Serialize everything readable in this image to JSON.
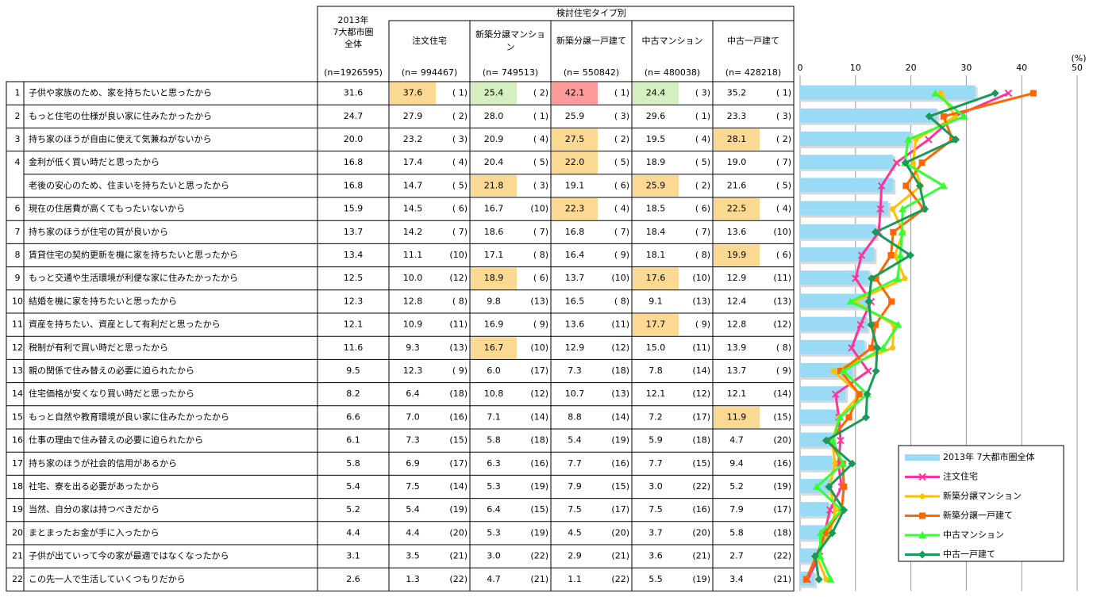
{
  "chart_data": {
    "type": "bar-line",
    "group_header": "検討住宅タイプ別",
    "x_unit": "(%)",
    "xlim": [
      0,
      50
    ],
    "xticks": [
      0,
      10,
      20,
      30,
      40,
      50
    ],
    "grid": true,
    "legend": "lower right",
    "row_numbers": [
      1,
      2,
      3,
      4,
      null,
      6,
      7,
      8,
      9,
      10,
      11,
      12,
      13,
      14,
      15,
      16,
      17,
      18,
      19,
      20,
      21,
      22
    ],
    "categories": [
      "子供や家族のため、家を持ちたいと思ったから",
      "もっと住宅の仕様が良い家に住みたかったから",
      "持ち家のほうが自由に使えて気兼ねがないから",
      "金利が低く買い時だと思ったから",
      "老後の安心のため、住まいを持ちたいと思ったから",
      "現在の住居費が高くてもったいないから",
      "持ち家のほうが住宅の質が良いから",
      "賃貸住宅の契約更新を機に家を持ちたいと思ったから",
      "もっと交通や生活環境が利便な家に住みたかったから",
      "結婚を機に家を持ちたいと思ったから",
      "資産を持ちたい、資産として有利だと思ったから",
      "税制が有利で買い時だと思ったから",
      "親の関係で住み替えの必要に迫られたから",
      "住宅価格が安くなり買い時だと思ったから",
      "もっと自然や教育環境が良い家に住みたかったから",
      "仕事の理由で住み替えの必要に迫られたから",
      "持ち家のほうが社会的信用があるから",
      "社宅、寮を出る必要があったから",
      "当然、自分の家は持つべきだから",
      "まとまったお金が手に入ったから",
      "子供が出ていって今の家が最適ではなくなったから",
      "この先一人で生活していくつもりだから"
    ],
    "series": [
      {
        "name": "2013年 7大都市圏全体",
        "color": "#99dbf5",
        "marker": "bar",
        "header_lines": [
          "2013年",
          "7大都市圏",
          "全体"
        ],
        "n": {
          "value": 1926595,
          "label": "(n=1926595)"
        },
        "values": [
          31.6,
          24.7,
          20.0,
          16.8,
          16.8,
          15.9,
          13.7,
          13.4,
          12.5,
          12.3,
          12.1,
          11.6,
          9.5,
          8.2,
          6.6,
          6.1,
          5.8,
          5.4,
          5.2,
          4.4,
          3.1,
          2.6
        ],
        "value_labels": [
          "31.6",
          "24.7",
          "20.0",
          "16.8",
          "16.8",
          "15.9",
          "13.7",
          "13.4",
          "12.5",
          "12.3",
          "12.1",
          "11.6",
          "9.5",
          "8.2",
          "6.6",
          "6.1",
          "5.8",
          "5.4",
          "5.2",
          "4.4",
          "3.1",
          "2.6"
        ]
      },
      {
        "name": "注文住宅",
        "color": "#ff3399",
        "marker": "x",
        "n": {
          "value": 994467,
          "label": "(n= 994467)"
        },
        "values": [
          37.6,
          27.9,
          23.2,
          17.4,
          14.7,
          14.5,
          14.2,
          11.1,
          10.0,
          12.8,
          10.9,
          9.3,
          12.3,
          6.4,
          7.0,
          7.3,
          6.9,
          7.5,
          5.4,
          4.4,
          3.5,
          1.3
        ],
        "value_labels": [
          "37.6",
          "27.9",
          "23.2",
          "17.4",
          "14.7",
          "14.5",
          "14.2",
          "11.1",
          "10.0",
          "12.8",
          "10.9",
          "9.3",
          "12.3",
          "6.4",
          "7.0",
          "7.3",
          "6.9",
          "7.5",
          "5.4",
          "4.4",
          "3.5",
          "1.3"
        ],
        "ranks": [
          "( 1)",
          "( 2)",
          "( 3)",
          "( 4)",
          "( 5)",
          "( 6)",
          "( 7)",
          "(10)",
          "(12)",
          "( 8)",
          "(11)",
          "(13)",
          "( 9)",
          "(18)",
          "(16)",
          "(15)",
          "(17)",
          "(14)",
          "(19)",
          "(20)",
          "(21)",
          "(22)"
        ],
        "cell_colors": [
          "#fcd992",
          null,
          null,
          null,
          null,
          null,
          null,
          null,
          null,
          null,
          null,
          null,
          null,
          null,
          null,
          null,
          null,
          null,
          null,
          null,
          null,
          null
        ]
      },
      {
        "name": "新築分譲マンション",
        "color": "#ffc000",
        "marker": "circle",
        "n": {
          "value": 749513,
          "label": "(n= 749513)"
        },
        "values": [
          25.4,
          28.0,
          20.9,
          20.4,
          21.8,
          16.7,
          18.6,
          17.1,
          18.9,
          9.8,
          16.9,
          16.7,
          6.0,
          10.8,
          7.1,
          5.8,
          6.3,
          5.3,
          6.4,
          5.3,
          3.0,
          4.7
        ],
        "value_labels": [
          "25.4",
          "28.0",
          "20.9",
          "20.4",
          "21.8",
          "16.7",
          "18.6",
          "17.1",
          "18.9",
          "9.8",
          "16.9",
          "16.7",
          "6.0",
          "10.8",
          "7.1",
          "5.8",
          "6.3",
          "5.3",
          "6.4",
          "5.3",
          "3.0",
          "4.7"
        ],
        "ranks": [
          "( 2)",
          "( 1)",
          "( 4)",
          "( 5)",
          "( 3)",
          "(10)",
          "( 7)",
          "( 8)",
          "( 6)",
          "(13)",
          "( 9)",
          "(10)",
          "(17)",
          "(12)",
          "(14)",
          "(18)",
          "(16)",
          "(19)",
          "(15)",
          "(19)",
          "(22)",
          "(21)"
        ],
        "cell_colors": [
          "#d6efc0",
          null,
          null,
          null,
          "#fcd992",
          null,
          null,
          null,
          "#fcd992",
          null,
          null,
          "#fcd992",
          null,
          null,
          null,
          null,
          null,
          null,
          null,
          null,
          null,
          null
        ]
      },
      {
        "name": "新築分譲一戸建て",
        "color": "#ff6600",
        "marker": "square",
        "n": {
          "value": 550842,
          "label": "(n= 550842)"
        },
        "values": [
          42.1,
          25.9,
          27.5,
          22.0,
          19.1,
          22.3,
          16.8,
          16.4,
          13.7,
          16.5,
          13.6,
          12.9,
          7.3,
          10.7,
          8.8,
          5.4,
          7.7,
          7.9,
          7.5,
          4.5,
          2.9,
          1.1
        ],
        "value_labels": [
          "42.1",
          "25.9",
          "27.5",
          "22.0",
          "19.1",
          "22.3",
          "16.8",
          "16.4",
          "13.7",
          "16.5",
          "13.6",
          "12.9",
          "7.3",
          "10.7",
          "8.8",
          "5.4",
          "7.7",
          "7.9",
          "7.5",
          "4.5",
          "2.9",
          "1.1"
        ],
        "ranks": [
          "( 1)",
          "( 3)",
          "( 2)",
          "( 5)",
          "( 6)",
          "( 4)",
          "( 7)",
          "( 9)",
          "(10)",
          "( 8)",
          "(11)",
          "(12)",
          "(18)",
          "(13)",
          "(14)",
          "(19)",
          "(16)",
          "(15)",
          "(17)",
          "(20)",
          "(21)",
          "(22)"
        ],
        "cell_colors": [
          "#ff9b9b",
          null,
          "#fcd992",
          "#fcd992",
          null,
          "#fcd992",
          null,
          null,
          null,
          null,
          null,
          null,
          null,
          null,
          null,
          null,
          null,
          null,
          null,
          null,
          null,
          null
        ]
      },
      {
        "name": "中古マンション",
        "color": "#33ff33",
        "marker": "triangle",
        "n": {
          "value": 480038,
          "label": "(n= 480038)"
        },
        "values": [
          24.4,
          29.6,
          19.5,
          18.9,
          25.9,
          18.5,
          18.4,
          18.1,
          17.6,
          9.1,
          17.7,
          15.0,
          7.8,
          12.1,
          7.2,
          5.9,
          7.7,
          3.0,
          7.5,
          3.7,
          3.6,
          5.5
        ],
        "value_labels": [
          "24.4",
          "29.6",
          "19.5",
          "18.9",
          "25.9",
          "18.5",
          "18.4",
          "18.1",
          "17.6",
          "9.1",
          "17.7",
          "15.0",
          "7.8",
          "12.1",
          "7.2",
          "5.9",
          "7.7",
          "3.0",
          "7.5",
          "3.7",
          "3.6",
          "5.5"
        ],
        "ranks": [
          "( 3)",
          "( 1)",
          "( 4)",
          "( 5)",
          "( 2)",
          "( 6)",
          "( 7)",
          "( 8)",
          "(10)",
          "(13)",
          "( 9)",
          "(11)",
          "(14)",
          "(12)",
          "(17)",
          "(18)",
          "(15)",
          "(22)",
          "(16)",
          "(20)",
          "(21)",
          "(19)"
        ],
        "cell_colors": [
          "#d6efc0",
          null,
          null,
          null,
          "#fcd992",
          null,
          null,
          null,
          "#fcd992",
          null,
          "#fcd992",
          null,
          null,
          null,
          null,
          null,
          null,
          null,
          null,
          null,
          null,
          null
        ]
      },
      {
        "name": "中古一戸建て",
        "color": "#1a9a5a",
        "marker": "diamond",
        "n": {
          "value": 428218,
          "label": "(n= 428218)"
        },
        "values": [
          35.2,
          23.3,
          28.1,
          19.0,
          21.6,
          22.5,
          13.6,
          19.9,
          12.9,
          12.4,
          12.8,
          13.9,
          13.7,
          12.1,
          11.9,
          4.7,
          9.4,
          5.2,
          7.9,
          5.8,
          2.7,
          3.4
        ],
        "value_labels": [
          "35.2",
          "23.3",
          "28.1",
          "19.0",
          "21.6",
          "22.5",
          "13.6",
          "19.9",
          "12.9",
          "12.4",
          "12.8",
          "13.9",
          "13.7",
          "12.1",
          "11.9",
          "4.7",
          "9.4",
          "5.2",
          "7.9",
          "5.8",
          "2.7",
          "3.4"
        ],
        "ranks": [
          "( 1)",
          "( 3)",
          "( 2)",
          "( 7)",
          "( 5)",
          "( 4)",
          "(10)",
          "( 6)",
          "(11)",
          "(13)",
          "(12)",
          "( 8)",
          "( 9)",
          "(14)",
          "(15)",
          "(20)",
          "(16)",
          "(19)",
          "(17)",
          "(18)",
          "(22)",
          "(21)"
        ],
        "cell_colors": [
          null,
          null,
          "#fcd992",
          null,
          null,
          "#fcd992",
          null,
          "#fcd992",
          null,
          null,
          null,
          null,
          null,
          null,
          "#fcd992",
          null,
          null,
          null,
          null,
          null,
          null,
          null
        ]
      }
    ]
  }
}
